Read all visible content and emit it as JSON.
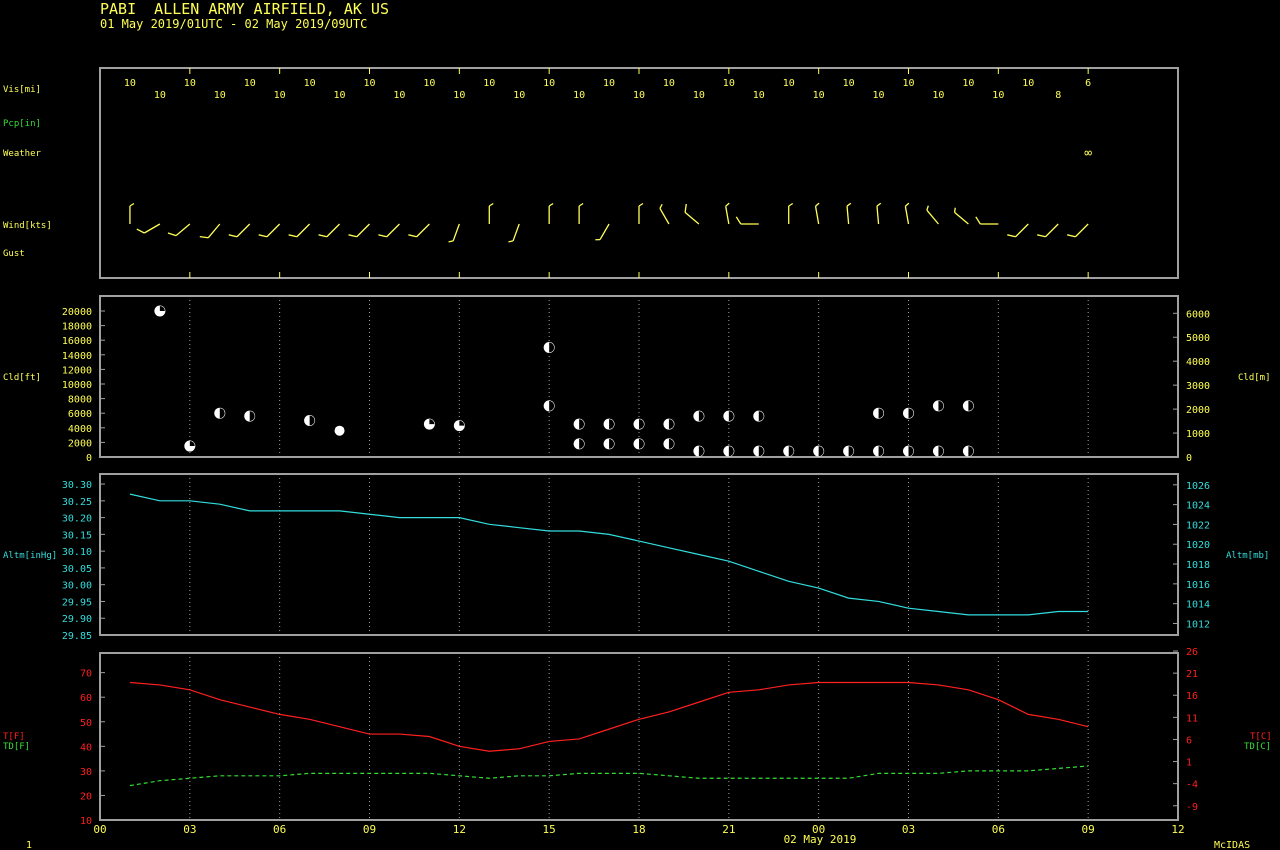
{
  "header": {
    "station": "PABI  ALLEN ARMY AIRFIELD, AK US",
    "period": "01 May 2019/01UTC - 02 May 2019/09UTC"
  },
  "footer": {
    "page": "1",
    "date": "02 May 2019",
    "brand": "McIDAS"
  },
  "colors": {
    "frame": "#a0a0a0",
    "yellow": "#ffff55",
    "green": "#33dd33",
    "cyan": "#33dddd",
    "red": "#ff2020",
    "white": "#ffffff"
  },
  "x_ticks": [
    "00",
    "03",
    "06",
    "09",
    "12",
    "15",
    "18",
    "21",
    "00",
    "03",
    "06",
    "09",
    "12"
  ],
  "chart_data": [
    {
      "type": "table",
      "panel": "surface observations",
      "row_labels": {
        "vis": "Vis[mi]",
        "pcp": "Pcp[in]",
        "weather": "Weather",
        "wind": "Wind[kts]",
        "gust": "Gust"
      },
      "hours": [
        1,
        2,
        3,
        4,
        5,
        6,
        7,
        8,
        9,
        10,
        11,
        12,
        13,
        14,
        15,
        16,
        17,
        18,
        19,
        20,
        21,
        22,
        23,
        24,
        25,
        26,
        27,
        28,
        29,
        30,
        31,
        32,
        33
      ],
      "visibility": [
        "10",
        "10",
        "10",
        "10",
        "10",
        "10",
        "10",
        "10",
        "10",
        "10",
        "10",
        "10",
        "10",
        "10",
        "10",
        "10",
        "10",
        "10",
        "10",
        "10",
        "10",
        "10",
        "10",
        "10",
        "10",
        "10",
        "10",
        "10",
        "10",
        "10",
        "10",
        "8",
        "6"
      ],
      "weather": [
        {
          "hour": 33,
          "symbol": "∞"
        }
      ],
      "wind": [
        {
          "dir": 360,
          "spd": 5
        },
        {
          "dir": 240,
          "spd": 10
        },
        {
          "dir": 230,
          "spd": 10
        },
        {
          "dir": 220,
          "spd": 10
        },
        {
          "dir": 225,
          "spd": 10
        },
        {
          "dir": 225,
          "spd": 10
        },
        {
          "dir": 225,
          "spd": 10
        },
        {
          "dir": 225,
          "spd": 10
        },
        {
          "dir": 225,
          "spd": 10
        },
        {
          "dir": 225,
          "spd": 10
        },
        {
          "dir": 225,
          "spd": 10
        },
        {
          "dir": 200,
          "spd": 5
        },
        {
          "dir": 360,
          "spd": 5
        },
        {
          "dir": 200,
          "spd": 5
        },
        {
          "dir": 360,
          "spd": 5
        },
        {
          "dir": 360,
          "spd": 5
        },
        {
          "dir": 210,
          "spd": 5
        },
        {
          "dir": 360,
          "spd": 5
        },
        {
          "dir": 330,
          "spd": 5
        },
        {
          "dir": 310,
          "spd": 10
        },
        {
          "dir": 350,
          "spd": 5
        },
        {
          "dir": 270,
          "spd": 10
        },
        {
          "dir": 360,
          "spd": 5
        },
        {
          "dir": 350,
          "spd": 5
        },
        {
          "dir": 355,
          "spd": 5
        },
        {
          "dir": 355,
          "spd": 5
        },
        {
          "dir": 350,
          "spd": 5
        },
        {
          "dir": 320,
          "spd": 5
        },
        {
          "dir": 310,
          "spd": 5
        },
        {
          "dir": 270,
          "spd": 10
        },
        {
          "dir": 225,
          "spd": 10
        },
        {
          "dir": 225,
          "spd": 10
        },
        {
          "dir": 225,
          "spd": 10
        }
      ]
    },
    {
      "type": "scatter",
      "panel": "cloud layers",
      "ylabel_left": "Cld[ft]",
      "ylabel_right": "Cld[m]",
      "ylim": [
        0,
        21000
      ],
      "yticks_left": [
        0,
        2000,
        4000,
        6000,
        8000,
        10000,
        12000,
        14000,
        16000,
        18000,
        20000
      ],
      "yticks_right": [
        0,
        1000,
        2000,
        3000,
        4000,
        5000,
        6000
      ],
      "layers": [
        {
          "hour": 2,
          "base_ft": 20000,
          "cover": "SCT"
        },
        {
          "hour": 3,
          "base_ft": 1500,
          "cover": "SCT"
        },
        {
          "hour": 4,
          "base_ft": 6000,
          "cover": "BKN"
        },
        {
          "hour": 5,
          "base_ft": 5600,
          "cover": "BKN"
        },
        {
          "hour": 7,
          "base_ft": 5000,
          "cover": "BKN"
        },
        {
          "hour": 8,
          "base_ft": 3600,
          "cover": "OVC"
        },
        {
          "hour": 11,
          "base_ft": 4500,
          "cover": "SCT"
        },
        {
          "hour": 12,
          "base_ft": 4300,
          "cover": "SCT"
        },
        {
          "hour": 15,
          "base_ft": 15000,
          "cover": "BKN"
        },
        {
          "hour": 15,
          "base_ft": 7000,
          "cover": "BKN"
        },
        {
          "hour": 16,
          "base_ft": 1800,
          "cover": "BKN"
        },
        {
          "hour": 16,
          "base_ft": 4500,
          "cover": "BKN"
        },
        {
          "hour": 17,
          "base_ft": 1800,
          "cover": "BKN"
        },
        {
          "hour": 17,
          "base_ft": 4500,
          "cover": "BKN"
        },
        {
          "hour": 18,
          "base_ft": 1800,
          "cover": "BKN"
        },
        {
          "hour": 18,
          "base_ft": 4500,
          "cover": "BKN"
        },
        {
          "hour": 19,
          "base_ft": 1800,
          "cover": "BKN"
        },
        {
          "hour": 19,
          "base_ft": 4500,
          "cover": "BKN"
        },
        {
          "hour": 20,
          "base_ft": 800,
          "cover": "BKN"
        },
        {
          "hour": 20,
          "base_ft": 5600,
          "cover": "BKN"
        },
        {
          "hour": 21,
          "base_ft": 800,
          "cover": "BKN"
        },
        {
          "hour": 21,
          "base_ft": 5600,
          "cover": "BKN"
        },
        {
          "hour": 22,
          "base_ft": 800,
          "cover": "BKN"
        },
        {
          "hour": 22,
          "base_ft": 5600,
          "cover": "BKN"
        },
        {
          "hour": 23,
          "base_ft": 800,
          "cover": "BKN"
        },
        {
          "hour": 24,
          "base_ft": 800,
          "cover": "BKN"
        },
        {
          "hour": 25,
          "base_ft": 800,
          "cover": "BKN"
        },
        {
          "hour": 26,
          "base_ft": 800,
          "cover": "BKN"
        },
        {
          "hour": 26,
          "base_ft": 6000,
          "cover": "BKN"
        },
        {
          "hour": 27,
          "base_ft": 800,
          "cover": "BKN"
        },
        {
          "hour": 27,
          "base_ft": 6000,
          "cover": "BKN"
        },
        {
          "hour": 28,
          "base_ft": 800,
          "cover": "BKN"
        },
        {
          "hour": 28,
          "base_ft": 7000,
          "cover": "BKN"
        },
        {
          "hour": 29,
          "base_ft": 800,
          "cover": "BKN"
        },
        {
          "hour": 29,
          "base_ft": 7000,
          "cover": "BKN"
        }
      ]
    },
    {
      "type": "line",
      "panel": "altimeter",
      "ylabel_left": "Altm[inHg]",
      "ylabel_right": "Altm[mb]",
      "ylim": [
        29.85,
        30.33
      ],
      "yticks_left": [
        "29.85",
        "29.90",
        "29.95",
        "30.00",
        "30.05",
        "30.10",
        "30.15",
        "30.20",
        "30.25",
        "30.30"
      ],
      "yticks_right": [
        "1012",
        "1014",
        "1016",
        "1018",
        "1020",
        "1022",
        "1024",
        "1026"
      ],
      "series": [
        {
          "x": [
            1,
            2,
            3,
            4,
            5,
            6,
            7,
            8,
            9,
            10,
            11,
            12,
            13,
            14,
            15,
            16,
            17,
            18,
            19,
            20,
            21,
            22,
            23,
            24,
            25,
            26,
            27,
            28,
            29,
            30,
            31,
            32,
            33
          ],
          "values": [
            30.27,
            30.25,
            30.25,
            30.24,
            30.22,
            30.22,
            30.22,
            30.22,
            30.21,
            30.2,
            30.2,
            30.2,
            30.18,
            30.17,
            30.16,
            30.16,
            30.15,
            30.13,
            30.11,
            30.09,
            30.07,
            30.04,
            30.01,
            29.99,
            29.96,
            29.95,
            29.93,
            29.92,
            29.91,
            29.91,
            29.91,
            29.92,
            29.92
          ]
        }
      ]
    },
    {
      "type": "line",
      "panel": "temperature and dewpoint",
      "ylabel_left": [
        "T[F]",
        "TD[F]"
      ],
      "ylabel_right": [
        "T[C]",
        "TD[C]"
      ],
      "ylim": [
        10,
        78
      ],
      "yticks_left": [
        "10",
        "20",
        "30",
        "40",
        "50",
        "60",
        "70"
      ],
      "yticks_right": [
        "-9",
        "-4",
        "1",
        "6",
        "11",
        "16",
        "21",
        "26"
      ],
      "xlabel": "02 May 2019",
      "x": [
        1,
        2,
        3,
        4,
        5,
        6,
        7,
        8,
        9,
        10,
        11,
        12,
        13,
        14,
        15,
        16,
        17,
        18,
        19,
        20,
        21,
        22,
        23,
        24,
        25,
        26,
        27,
        28,
        29,
        30,
        31,
        32,
        33
      ],
      "series": [
        {
          "name": "T[F]",
          "style": "solid",
          "values": [
            66,
            65,
            63,
            59,
            56,
            53,
            51,
            48,
            45,
            45,
            44,
            40,
            38,
            39,
            42,
            43,
            47,
            51,
            54,
            58,
            62,
            63,
            65,
            66,
            66,
            66,
            66,
            65,
            63,
            59,
            53,
            51,
            48
          ]
        },
        {
          "name": "TD[F]",
          "style": "dashed",
          "values": [
            24,
            26,
            27,
            28,
            28,
            28,
            29,
            29,
            29,
            29,
            29,
            28,
            27,
            28,
            28,
            29,
            29,
            29,
            28,
            27,
            27,
            27,
            27,
            27,
            27,
            29,
            29,
            29,
            30,
            30,
            30,
            31,
            32
          ]
        }
      ]
    }
  ]
}
